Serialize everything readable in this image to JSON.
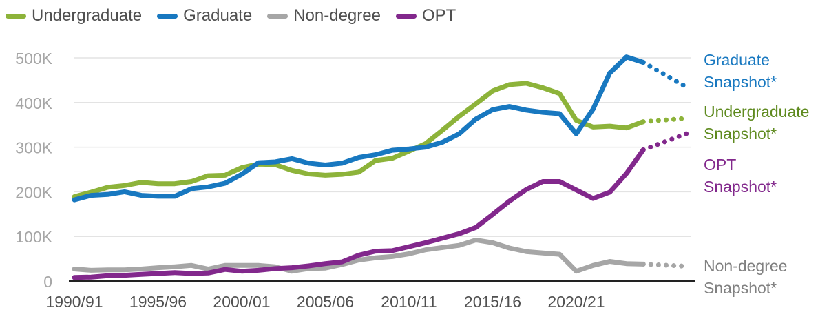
{
  "chart_data": {
    "type": "line",
    "title": "",
    "xlabel": "",
    "ylabel": "",
    "ylim": [
      0,
      500000
    ],
    "y_ticks": [
      {
        "value": 0,
        "label": "0"
      },
      {
        "value": 100000,
        "label": "100K"
      },
      {
        "value": 200000,
        "label": "200K"
      },
      {
        "value": 300000,
        "label": "300K"
      },
      {
        "value": 400000,
        "label": "400K"
      },
      {
        "value": 500000,
        "label": "500K"
      }
    ],
    "x_tick_labels": [
      {
        "index": 0,
        "label": "1990/91"
      },
      {
        "index": 5,
        "label": "1995/96"
      },
      {
        "index": 10,
        "label": "2000/01"
      },
      {
        "index": 15,
        "label": "2005/06"
      },
      {
        "index": 20,
        "label": "2010/11"
      },
      {
        "index": 25,
        "label": "2015/16"
      },
      {
        "index": 30,
        "label": "2020/21"
      }
    ],
    "categories": [
      "1990/91",
      "1991/92",
      "1992/93",
      "1993/94",
      "1994/95",
      "1995/96",
      "1996/97",
      "1997/98",
      "1998/99",
      "1999/00",
      "2000/01",
      "2001/02",
      "2002/03",
      "2003/04",
      "2004/05",
      "2005/06",
      "2006/07",
      "2007/08",
      "2008/09",
      "2009/10",
      "2010/11",
      "2011/12",
      "2012/13",
      "2013/14",
      "2014/15",
      "2015/16",
      "2016/17",
      "2017/18",
      "2018/19",
      "2019/20",
      "2020/21",
      "2021/22",
      "2022/23",
      "2023/24",
      "2024/25"
    ],
    "snapshot_category": "Snapshot",
    "series": [
      {
        "name": "Undergraduate",
        "color": "#8db33a",
        "snapshot_label": [
          "Undergraduate",
          "Snapshot*"
        ],
        "snapshot_label_color": "#5e8a1e",
        "values": [
          189000,
          199000,
          210000,
          214000,
          221000,
          218000,
          218000,
          223000,
          236000,
          237000,
          254000,
          262000,
          261000,
          248000,
          240000,
          237000,
          239000,
          244000,
          270000,
          275000,
          291000,
          308000,
          338000,
          369000,
          397000,
          426000,
          440000,
          443000,
          433000,
          420000,
          360000,
          345000,
          347000,
          343000,
          357000
        ],
        "snapshot_value": 365000
      },
      {
        "name": "Graduate",
        "color": "#1878c0",
        "snapshot_label": [
          "Graduate",
          "Snapshot*"
        ],
        "snapshot_label_color": "#1878c0",
        "values": [
          182000,
          192000,
          194000,
          200000,
          192000,
          190000,
          190000,
          207000,
          211000,
          219000,
          239000,
          265000,
          267000,
          274000,
          264000,
          260000,
          264000,
          277000,
          283000,
          293000,
          296000,
          300000,
          311000,
          330000,
          363000,
          384000,
          391000,
          383000,
          378000,
          375000,
          330000,
          385000,
          466000,
          502000,
          490000
        ],
        "snapshot_value": 432000
      },
      {
        "name": "Non-degree",
        "color": "#a6a6a6",
        "snapshot_label": [
          "Non-degree",
          "Snapshot*"
        ],
        "snapshot_label_color": "#808080",
        "values": [
          27000,
          24000,
          25000,
          25000,
          27000,
          30000,
          32000,
          35000,
          27000,
          35000,
          35000,
          35000,
          32000,
          22000,
          28000,
          29000,
          37000,
          47000,
          52000,
          55000,
          61000,
          70000,
          75000,
          80000,
          92000,
          86000,
          74000,
          66000,
          63000,
          60000,
          22000,
          35000,
          44000,
          39000,
          38000
        ],
        "snapshot_value": 33000
      },
      {
        "name": "OPT",
        "color": "#82288c",
        "snapshot_label": [
          "OPT",
          "Snapshot*"
        ],
        "snapshot_label_color": "#82288c",
        "values": [
          8000,
          9000,
          12000,
          13000,
          15000,
          17000,
          19000,
          17000,
          18000,
          26000,
          22000,
          24000,
          28000,
          30000,
          34000,
          39000,
          43000,
          58000,
          67000,
          68000,
          77000,
          86000,
          96000,
          106000,
          120000,
          149000,
          179000,
          205000,
          223000,
          223000,
          204000,
          185000,
          199000,
          241000,
          294000
        ],
        "snapshot_value": 332000
      }
    ]
  }
}
